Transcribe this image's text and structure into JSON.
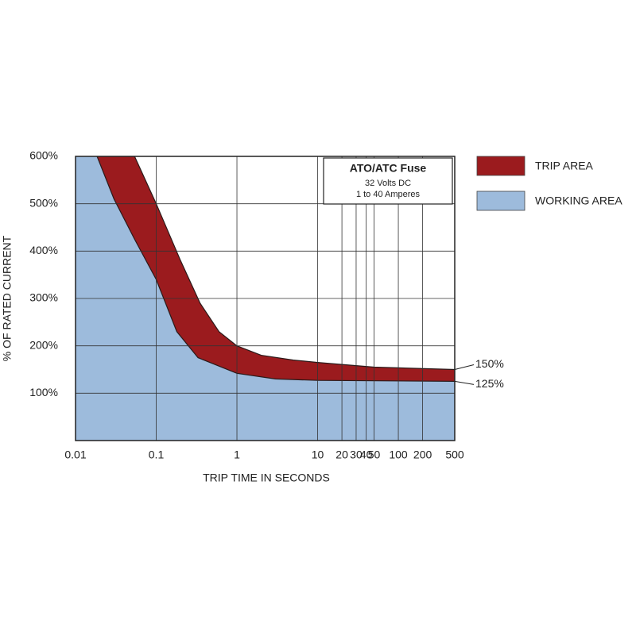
{
  "chart_data": {
    "type": "area-band",
    "box_title": "ATO/ATC Fuse",
    "box_lines": [
      "32 Volts DC",
      "1 to 40 Amperes"
    ],
    "xlabel": "TRIP TIME IN SECONDS",
    "ylabel": "% OF RATED CURRENT",
    "log_x": true,
    "grid": true,
    "legend": "right",
    "xlim": [
      0.01,
      500
    ],
    "ylim": [
      0,
      600
    ],
    "xticks": [
      0.01,
      0.1,
      1,
      10,
      20,
      30,
      40,
      50,
      100,
      200,
      500
    ],
    "yticks": [
      {
        "value": 100,
        "label": "100%"
      },
      {
        "value": 200,
        "label": "200%"
      },
      {
        "value": 300,
        "label": "300%"
      },
      {
        "value": 400,
        "label": "400%"
      },
      {
        "value": 500,
        "label": "500%"
      },
      {
        "value": 600,
        "label": "600%"
      }
    ],
    "series": [
      {
        "name": "TRIP AREA",
        "color": "#9b1b1e",
        "x": [
          0.054,
          0.1,
          0.2,
          0.35,
          0.6,
          1,
          2,
          5,
          10,
          50,
          500
        ],
        "values": [
          600,
          500,
          380,
          290,
          230,
          200,
          180,
          170,
          165,
          155,
          150
        ]
      },
      {
        "name": "WORKING AREA",
        "color": "#9dbbdc",
        "x": [
          0.0185,
          0.03,
          0.054,
          0.1,
          0.18,
          0.33,
          1,
          3,
          10,
          500
        ],
        "values": [
          600,
          510,
          425,
          340,
          230,
          175,
          142,
          130,
          127,
          125
        ]
      }
    ],
    "end_labels": [
      {
        "value": 150,
        "label": "150%"
      },
      {
        "value": 125,
        "label": "125%"
      }
    ]
  }
}
